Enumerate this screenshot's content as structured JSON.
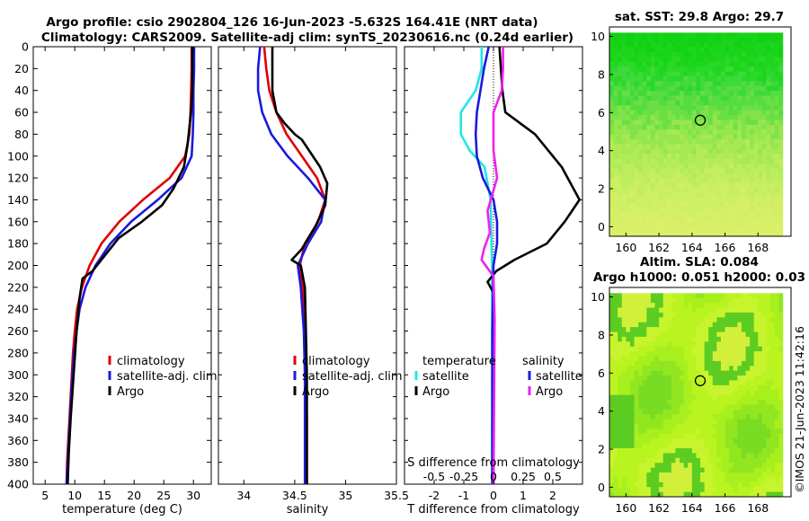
{
  "title": {
    "line1": "Argo profile: csio 2902804_126 16-Jun-2023 -5.632S 164.41E (NRT data)",
    "line2": "Climatology: CARS2009. Satellite-adj clim: synTS_20230616.nc (0.24d earlier)"
  },
  "watermark": "©IMOS 21-Jun-2023 11:42:16",
  "colors": {
    "climatology": "#e00000",
    "satellite": "#1a1adc",
    "argo": "#000000",
    "t_satellite": "#22e6e6",
    "s_argo": "#f020f0"
  },
  "chart_data": [
    {
      "id": "temperature",
      "type": "line",
      "xlabel": "temperature (deg C)",
      "ylabel": "",
      "xlim": [
        3,
        33
      ],
      "ylim": [
        400,
        0
      ],
      "xticks": [
        5,
        10,
        15,
        20,
        25,
        30
      ],
      "yticks": [
        0,
        20,
        40,
        60,
        80,
        100,
        120,
        140,
        160,
        180,
        200,
        220,
        240,
        260,
        280,
        300,
        320,
        340,
        360,
        380,
        400
      ],
      "legend": {
        "position": "lower-right",
        "items": [
          "climatology",
          "satellite-adj. clim",
          "Argo"
        ]
      },
      "series": [
        {
          "name": "climatology",
          "points": [
            [
              29.7,
              0
            ],
            [
              29.7,
              20
            ],
            [
              29.6,
              40
            ],
            [
              29.5,
              60
            ],
            [
              29.3,
              80
            ],
            [
              28.6,
              100
            ],
            [
              26.0,
              120
            ],
            [
              21.5,
              140
            ],
            [
              17.5,
              160
            ],
            [
              14.5,
              180
            ],
            [
              12.5,
              200
            ],
            [
              11.2,
              220
            ],
            [
              10.4,
              240
            ],
            [
              10.0,
              260
            ],
            [
              9.7,
              280
            ],
            [
              9.5,
              300
            ],
            [
              9.3,
              320
            ],
            [
              9.1,
              340
            ],
            [
              8.9,
              360
            ],
            [
              8.7,
              380
            ],
            [
              8.6,
              400
            ]
          ]
        },
        {
          "name": "satellite-adj. clim",
          "points": [
            [
              30.1,
              0
            ],
            [
              30.1,
              20
            ],
            [
              30.0,
              40
            ],
            [
              30.0,
              60
            ],
            [
              29.9,
              80
            ],
            [
              29.7,
              100
            ],
            [
              28.0,
              120
            ],
            [
              24.0,
              140
            ],
            [
              19.5,
              160
            ],
            [
              16.0,
              180
            ],
            [
              13.5,
              200
            ],
            [
              11.8,
              220
            ],
            [
              10.8,
              240
            ],
            [
              10.3,
              260
            ],
            [
              9.9,
              280
            ],
            [
              9.6,
              300
            ],
            [
              9.4,
              320
            ],
            [
              9.2,
              340
            ],
            [
              9.0,
              360
            ],
            [
              8.8,
              380
            ],
            [
              8.6,
              400
            ]
          ]
        },
        {
          "name": "Argo",
          "points": [
            [
              29.8,
              0
            ],
            [
              29.8,
              40
            ],
            [
              29.6,
              60
            ],
            [
              29.4,
              70
            ],
            [
              29.0,
              90
            ],
            [
              28.4,
              110
            ],
            [
              26.6,
              130
            ],
            [
              24.7,
              145
            ],
            [
              21.3,
              160
            ],
            [
              17.4,
              175
            ],
            [
              15.2,
              190
            ],
            [
              13.0,
              205
            ],
            [
              11.3,
              212
            ],
            [
              10.8,
              230
            ],
            [
              10.3,
              260
            ],
            [
              9.8,
              300
            ],
            [
              9.3,
              340
            ],
            [
              9.0,
              370
            ],
            [
              8.8,
              400
            ]
          ]
        }
      ]
    },
    {
      "id": "salinity",
      "type": "line",
      "xlabel": "salinity",
      "ylabel": "",
      "xlim": [
        33.75,
        35.5
      ],
      "ylim": [
        400,
        0
      ],
      "xticks": [
        34,
        34.5,
        35,
        35.5
      ],
      "legend": {
        "position": "lower-right",
        "items": [
          "climatology",
          "satellite-adj. clim",
          "Argo"
        ]
      },
      "series": [
        {
          "name": "climatology",
          "points": [
            [
              34.2,
              0
            ],
            [
              34.22,
              20
            ],
            [
              34.25,
              40
            ],
            [
              34.32,
              60
            ],
            [
              34.42,
              80
            ],
            [
              34.57,
              100
            ],
            [
              34.72,
              120
            ],
            [
              34.8,
              140
            ],
            [
              34.73,
              160
            ],
            [
              34.6,
              180
            ],
            [
              34.55,
              200
            ],
            [
              34.58,
              220
            ],
            [
              34.6,
              260
            ],
            [
              34.61,
              300
            ],
            [
              34.62,
              340
            ],
            [
              34.62,
              400
            ]
          ]
        },
        {
          "name": "satellite-adj. clim",
          "points": [
            [
              34.16,
              0
            ],
            [
              34.14,
              20
            ],
            [
              34.14,
              40
            ],
            [
              34.18,
              60
            ],
            [
              34.27,
              80
            ],
            [
              34.43,
              100
            ],
            [
              34.63,
              120
            ],
            [
              34.8,
              140
            ],
            [
              34.76,
              160
            ],
            [
              34.63,
              180
            ],
            [
              34.53,
              200
            ],
            [
              34.56,
              220
            ],
            [
              34.59,
              260
            ],
            [
              34.6,
              300
            ],
            [
              34.6,
              340
            ],
            [
              34.6,
              400
            ]
          ]
        },
        {
          "name": "Argo",
          "points": [
            [
              34.28,
              0
            ],
            [
              34.28,
              20
            ],
            [
              34.28,
              40
            ],
            [
              34.32,
              60
            ],
            [
              34.4,
              70
            ],
            [
              34.5,
              80
            ],
            [
              34.57,
              85
            ],
            [
              34.75,
              110
            ],
            [
              34.82,
              125
            ],
            [
              34.8,
              145
            ],
            [
              34.7,
              165
            ],
            [
              34.57,
              185
            ],
            [
              34.47,
              195
            ],
            [
              34.56,
              200
            ],
            [
              34.6,
              220
            ],
            [
              34.61,
              260
            ],
            [
              34.62,
              300
            ],
            [
              34.62,
              400
            ]
          ]
        }
      ]
    },
    {
      "id": "differences",
      "type": "line",
      "xlabel": "T difference from climatology",
      "x2label": "S difference from climatology",
      "xlim": [
        -3,
        3
      ],
      "x2lim": [
        -0.75,
        0.75
      ],
      "ylim": [
        400,
        0
      ],
      "xticks": [
        -2,
        -1,
        0,
        1,
        2
      ],
      "xtick_labels": [
        "-2",
        "-1",
        "0",
        "1",
        "2"
      ],
      "x2ticks": [
        -0.5,
        -0.25,
        0,
        0.25,
        0.5
      ],
      "x2tick_labels": [
        "-0.5",
        "-0.25",
        "0",
        "0.25",
        "0.5"
      ],
      "legend": {
        "position": "lower",
        "temperature_heading": "temperature",
        "salinity_heading": "salinity",
        "items": [
          "satellite",
          "Argo",
          "satellite",
          "Argo"
        ]
      },
      "series": [
        {
          "name": "temperature satellite",
          "axis": "T",
          "points": [
            [
              -0.4,
              0
            ],
            [
              -0.4,
              20
            ],
            [
              -0.6,
              40
            ],
            [
              -1.1,
              60
            ],
            [
              -1.1,
              80
            ],
            [
              -0.8,
              95
            ],
            [
              -0.3,
              110
            ],
            [
              -0.1,
              140
            ],
            [
              -0.05,
              200
            ],
            [
              -0.05,
              400
            ]
          ]
        },
        {
          "name": "temperature Argo",
          "axis": "T",
          "points": [
            [
              0.2,
              0
            ],
            [
              0.3,
              40
            ],
            [
              0.4,
              60
            ],
            [
              1.4,
              80
            ],
            [
              2.3,
              110
            ],
            [
              2.9,
              140
            ],
            [
              2.4,
              160
            ],
            [
              1.8,
              180
            ],
            [
              0.7,
              195
            ],
            [
              0.1,
              205
            ],
            [
              -0.2,
              215
            ],
            [
              0.0,
              225
            ],
            [
              0.0,
              400
            ]
          ]
        },
        {
          "name": "salinity satellite",
          "axis": "S",
          "points": [
            [
              -0.04,
              0
            ],
            [
              -0.08,
              20
            ],
            [
              -0.11,
              40
            ],
            [
              -0.14,
              60
            ],
            [
              -0.15,
              80
            ],
            [
              -0.14,
              100
            ],
            [
              -0.09,
              120
            ],
            [
              0.0,
              140
            ],
            [
              0.03,
              160
            ],
            [
              0.03,
              180
            ],
            [
              0.0,
              200
            ],
            [
              -0.01,
              260
            ],
            [
              -0.01,
              400
            ]
          ]
        },
        {
          "name": "salinity Argo",
          "axis": "S",
          "points": [
            [
              0.08,
              0
            ],
            [
              0.08,
              20
            ],
            [
              0.07,
              40
            ],
            [
              0.0,
              60
            ],
            [
              0.0,
              80
            ],
            [
              0.0,
              95
            ],
            [
              0.03,
              120
            ],
            [
              -0.05,
              150
            ],
            [
              -0.03,
              170
            ],
            [
              -0.08,
              185
            ],
            [
              -0.1,
              195
            ],
            [
              0.0,
              210
            ],
            [
              0.01,
              250
            ],
            [
              0.0,
              400
            ]
          ]
        }
      ]
    },
    {
      "id": "sst_map",
      "type": "heatmap",
      "title": "sat. SST: 29.8 Argo: 29.7",
      "xlim": [
        159,
        170
      ],
      "ylim": [
        -0.5,
        10.5
      ],
      "xticks": [
        160,
        162,
        164,
        166,
        168
      ],
      "yticks": [
        0,
        2,
        4,
        6,
        8,
        10
      ],
      "data_extent": {
        "lon": [
          159,
          169.5
        ],
        "lat": [
          -0.5,
          10.2
        ]
      },
      "marker": {
        "lon": 164.5,
        "lat": 5.6
      },
      "rows_north_to_south": [
        "#12d012",
        "#18d418",
        "#1ed61e",
        "#2ad82a",
        "#3ed93a",
        "#55dc40",
        "#68e044",
        "#80e34a",
        "#96e64e",
        "#a6e953",
        "#b2eb58",
        "#bced5c",
        "#c6ee60",
        "#cdef63",
        "#d2ef66",
        "#d8ef68",
        "#ddef6a"
      ]
    },
    {
      "id": "sla_map",
      "type": "heatmap",
      "title": "Altim. SLA: 0.084",
      "subtitle": "Argo h1000: 0.051 h2000: 0.03",
      "xlim": [
        159,
        170
      ],
      "ylim": [
        -0.5,
        10.5
      ],
      "xticks": [
        160,
        162,
        164,
        166,
        168
      ],
      "yticks": [
        0,
        2,
        4,
        6,
        8,
        10
      ],
      "data_extent": {
        "lon": [
          159,
          169.5
        ],
        "lat": [
          -0.5,
          10.2
        ]
      },
      "marker": {
        "lon": 164.5,
        "lat": 5.6
      },
      "palette": [
        "#7adc22",
        "#92e620",
        "#a8ef1e",
        "#baf420",
        "#c8f42e",
        "#5ccc22",
        "#d2f03a"
      ]
    }
  ]
}
